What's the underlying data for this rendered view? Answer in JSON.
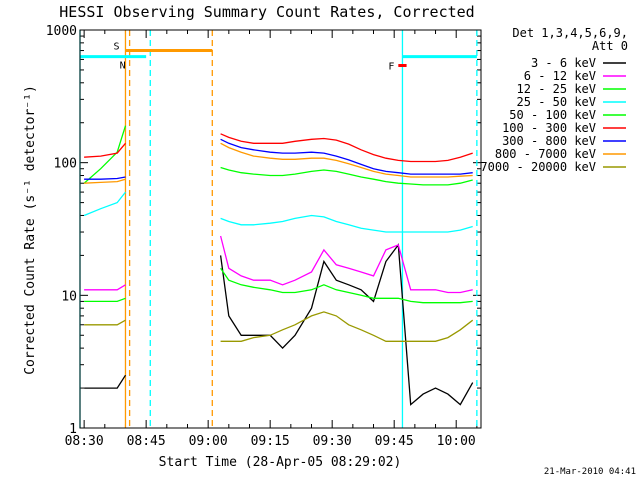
{
  "chart_data": {
    "type": "line",
    "title": "HESSI Observing Summary Count Rates, Corrected",
    "xlabel": "Start Time (28-Apr-05 08:29:02)",
    "ylabel": "Corrected Count Rate (s⁻¹ detector⁻¹)",
    "y_scale": "log",
    "ylim": [
      1,
      1000
    ],
    "xlim": [
      "08:29",
      "10:06"
    ],
    "x_ticks": [
      "08:30",
      "08:45",
      "09:00",
      "09:15",
      "09:30",
      "09:45",
      "10:00"
    ],
    "y_ticks": [
      "1",
      "10",
      "100",
      "1000"
    ],
    "legend": {
      "header_line1": "Det 1,3,4,5,6,9,",
      "header_line2": "Att 0",
      "position": "right, outside"
    },
    "series": [
      {
        "name": "3 - 6 keV",
        "color": "#000000",
        "x": [
          "08:30",
          "08:34",
          "08:38",
          "08:40",
          "09:03",
          "09:05",
          "09:08",
          "09:11",
          "09:15",
          "09:18",
          "09:21",
          "09:25",
          "09:28",
          "09:31",
          "09:34",
          "09:37",
          "09:40",
          "09:43",
          "09:46",
          "09:49",
          "09:52",
          "09:55",
          "09:58",
          "10:01",
          "10:04"
        ],
        "values": [
          2,
          2,
          2,
          2.5,
          20,
          7,
          5,
          5,
          5,
          4,
          5,
          8,
          18,
          13,
          12,
          11,
          9,
          18,
          24,
          1.5,
          1.8,
          2,
          1.8,
          1.5,
          2.2
        ]
      },
      {
        "name": "6 - 12 keV",
        "color": "#ff00ff",
        "x": [
          "08:30",
          "08:34",
          "08:38",
          "08:40",
          "09:03",
          "09:05",
          "09:08",
          "09:11",
          "09:15",
          "09:18",
          "09:21",
          "09:25",
          "09:28",
          "09:31",
          "09:34",
          "09:37",
          "09:40",
          "09:43",
          "09:46",
          "09:49",
          "09:52",
          "09:55",
          "09:58",
          "10:01",
          "10:04"
        ],
        "values": [
          11,
          11,
          11,
          12,
          28,
          16,
          14,
          13,
          13,
          12,
          13,
          15,
          22,
          17,
          16,
          15,
          14,
          22,
          24,
          11,
          11,
          11,
          10.5,
          10.5,
          11
        ]
      },
      {
        "name": "12 - 25 keV",
        "color": "#00ff00",
        "x": [
          "08:30",
          "08:34",
          "08:38",
          "08:40",
          "09:03",
          "09:05",
          "09:08",
          "09:11",
          "09:15",
          "09:18",
          "09:21",
          "09:25",
          "09:28",
          "09:31",
          "09:34",
          "09:37",
          "09:40",
          "09:43",
          "09:46",
          "09:49",
          "09:52",
          "09:55",
          "09:58",
          "10:01",
          "10:04"
        ],
        "values": [
          9,
          9,
          9,
          9.5,
          16,
          13,
          12,
          11.5,
          11,
          10.5,
          10.5,
          11,
          12,
          11,
          10.5,
          10,
          9.5,
          9.5,
          9.5,
          9,
          8.8,
          8.8,
          8.8,
          8.8,
          9
        ]
      },
      {
        "name": "25 - 50 keV",
        "color": "#00ffff",
        "x": [
          "08:30",
          "08:34",
          "08:38",
          "08:40",
          "09:03",
          "09:05",
          "09:08",
          "09:11",
          "09:15",
          "09:18",
          "09:21",
          "09:25",
          "09:28",
          "09:31",
          "09:34",
          "09:37",
          "09:40",
          "09:43",
          "09:46",
          "09:49",
          "09:52",
          "09:55",
          "09:58",
          "10:01",
          "10:04"
        ],
        "values": [
          40,
          45,
          50,
          60,
          38,
          36,
          34,
          34,
          35,
          36,
          38,
          40,
          39,
          36,
          34,
          32,
          31,
          30,
          30,
          30,
          30,
          30,
          30,
          31,
          33
        ]
      },
      {
        "name": "50 - 100 keV",
        "color": "#00ff00",
        "x": [
          "08:30",
          "08:34",
          "08:38",
          "08:40",
          "09:03",
          "09:05",
          "09:08",
          "09:11",
          "09:15",
          "09:18",
          "09:21",
          "09:25",
          "09:28",
          "09:31",
          "09:34",
          "09:37",
          "09:40",
          "09:43",
          "09:46",
          "09:49",
          "09:52",
          "09:55",
          "09:58",
          "10:01",
          "10:04"
        ],
        "values": [
          70,
          90,
          120,
          190,
          92,
          88,
          84,
          82,
          80,
          80,
          82,
          86,
          88,
          86,
          82,
          78,
          75,
          72,
          70,
          69,
          68,
          68,
          68,
          70,
          74
        ]
      },
      {
        "name": "100 - 300 keV",
        "color": "#ff0000",
        "x": [
          "08:30",
          "08:34",
          "08:38",
          "08:40",
          "09:03",
          "09:05",
          "09:08",
          "09:11",
          "09:15",
          "09:18",
          "09:21",
          "09:25",
          "09:28",
          "09:31",
          "09:34",
          "09:37",
          "09:40",
          "09:43",
          "09:46",
          "09:49",
          "09:52",
          "09:55",
          "09:58",
          "10:01",
          "10:04"
        ],
        "values": [
          110,
          112,
          118,
          140,
          165,
          155,
          145,
          140,
          140,
          140,
          145,
          150,
          152,
          148,
          138,
          125,
          115,
          108,
          104,
          102,
          102,
          102,
          104,
          110,
          118
        ]
      },
      {
        "name": "300 - 800 keV",
        "color": "#0000ff",
        "x": [
          "08:30",
          "08:34",
          "08:38",
          "08:40",
          "09:03",
          "09:05",
          "09:08",
          "09:11",
          "09:15",
          "09:18",
          "09:21",
          "09:25",
          "09:28",
          "09:31",
          "09:34",
          "09:37",
          "09:40",
          "09:43",
          "09:46",
          "09:49",
          "09:52",
          "09:55",
          "09:58",
          "10:01",
          "10:04"
        ],
        "values": [
          75,
          75,
          76,
          78,
          150,
          140,
          130,
          125,
          120,
          118,
          118,
          120,
          118,
          112,
          105,
          97,
          90,
          86,
          84,
          82,
          82,
          82,
          82,
          82,
          84
        ]
      },
      {
        "name": "800 - 7000 keV",
        "color": "#ff9900",
        "x": [
          "08:30",
          "08:34",
          "08:38",
          "08:40",
          "09:03",
          "09:05",
          "09:08",
          "09:11",
          "09:15",
          "09:18",
          "09:21",
          "09:25",
          "09:28",
          "09:31",
          "09:34",
          "09:37",
          "09:40",
          "09:43",
          "09:46",
          "09:49",
          "09:52",
          "09:55",
          "09:58",
          "10:01",
          "10:04"
        ],
        "values": [
          70,
          71,
          72,
          75,
          140,
          130,
          120,
          112,
          108,
          106,
          106,
          108,
          108,
          104,
          98,
          92,
          86,
          82,
          80,
          78,
          78,
          78,
          78,
          79,
          80
        ]
      },
      {
        "name": "7000 - 20000 keV",
        "color": "#999900",
        "x": [
          "08:30",
          "08:34",
          "08:38",
          "08:40",
          "09:03",
          "09:05",
          "09:08",
          "09:11",
          "09:15",
          "09:18",
          "09:21",
          "09:25",
          "09:28",
          "09:31",
          "09:34",
          "09:37",
          "09:40",
          "09:43",
          "09:46",
          "09:49",
          "09:52",
          "09:55",
          "09:58",
          "10:01",
          "10:04"
        ],
        "values": [
          6,
          6,
          6,
          6.5,
          4.5,
          4.5,
          4.5,
          4.8,
          5,
          5.5,
          6,
          7,
          7.5,
          7,
          6,
          5.5,
          5,
          4.5,
          4.5,
          4.5,
          4.5,
          4.5,
          4.8,
          5.5,
          6.5
        ]
      }
    ],
    "vertical_markers": [
      {
        "x": "08:29",
        "color": "#00ffff",
        "style": "solid"
      },
      {
        "x": "08:40",
        "color": "#ff9900",
        "style": "solid"
      },
      {
        "x": "08:41",
        "color": "#ff9900",
        "style": "dashed"
      },
      {
        "x": "08:46",
        "color": "#00ffff",
        "style": "dashed"
      },
      {
        "x": "09:01",
        "color": "#ff9900",
        "style": "dashed"
      },
      {
        "x": "09:47",
        "color": "#00ffff",
        "style": "solid"
      },
      {
        "x": "10:05",
        "color": "#00ffff",
        "style": "dashed"
      }
    ],
    "flag_bars": [
      {
        "label": "S",
        "color": "#ff9900",
        "x_start": "08:40",
        "x_end": "09:01",
        "y": 700
      },
      {
        "label": "N",
        "color": "#00ffff",
        "x_start": "08:29",
        "x_end": "08:45",
        "y": 630
      },
      {
        "label": "F",
        "color": "#ff0000",
        "x_start": "09:46",
        "x_end": "09:48",
        "y": 540
      },
      {
        "label": "",
        "color": "#00ffff",
        "x_start": "09:47",
        "x_end": "10:05",
        "y": 630
      }
    ]
  },
  "timestamp": "21-Mar-2010 04:41"
}
